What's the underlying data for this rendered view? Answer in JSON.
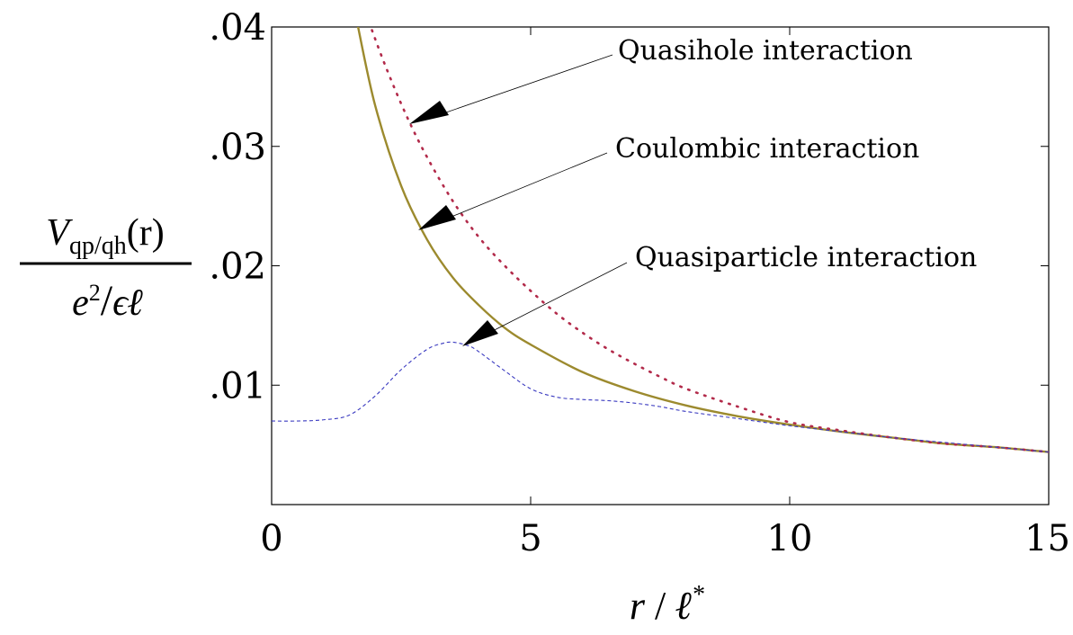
{
  "chart_data": {
    "type": "line",
    "title": "",
    "xlim": [
      0,
      15
    ],
    "ylim": [
      0,
      0.04
    ],
    "x_ticks": [
      0,
      5,
      10,
      15
    ],
    "x_tick_labels": [
      "0",
      "5",
      "10",
      "15"
    ],
    "y_ticks": [
      0.01,
      0.02,
      0.03,
      0.04
    ],
    "y_tick_labels": [
      ".01",
      ".02",
      ".03",
      ".04"
    ],
    "xlabel": {
      "var": "r",
      "sep": " / ",
      "unit": "ℓ",
      "sup": "*"
    },
    "ylabel": {
      "numerator": {
        "var": "V",
        "sub": "qp/qh",
        "arg": "(r)"
      },
      "denominator": {
        "e": "e",
        "pow": "2",
        "sep": "/",
        "eps": "ϵ",
        "ell": "ℓ"
      }
    },
    "grid": false,
    "series": [
      {
        "name": "Coulombic interaction",
        "style": "solid",
        "color": "#9c8a2e",
        "x": [
          1.65,
          2,
          2.5,
          3,
          3.5,
          4,
          4.5,
          5,
          6,
          7,
          8,
          9,
          10,
          11,
          12,
          13,
          14,
          15
        ],
        "y": [
          0.0404,
          0.0334,
          0.0267,
          0.0222,
          0.019,
          0.0167,
          0.0148,
          0.0134,
          0.0111,
          0.0095,
          0.0083,
          0.0074,
          0.0067,
          0.0061,
          0.0056,
          0.0051,
          0.0048,
          0.0044
        ]
      },
      {
        "name": "Quasihole interaction",
        "style": "dotted",
        "color": "#b22a4a",
        "x": [
          1.88,
          2.2,
          2.6,
          3,
          3.5,
          4,
          4.5,
          5,
          5.5,
          6,
          6.5,
          7,
          7.5,
          8,
          9,
          10,
          11,
          12,
          13,
          14,
          15
        ],
        "y": [
          0.0404,
          0.0367,
          0.0326,
          0.0291,
          0.0254,
          0.0224,
          0.02,
          0.0179,
          0.016,
          0.0144,
          0.013,
          0.0118,
          0.0107,
          0.0097,
          0.0082,
          0.0069,
          0.0062,
          0.0056,
          0.0051,
          0.0048,
          0.0044
        ]
      },
      {
        "name": "Quasiparticle interaction",
        "style": "dashed",
        "color": "#3a3ac0",
        "x": [
          0,
          0.5,
          1,
          1.5,
          2,
          2.5,
          3,
          3.3,
          3.5,
          3.8,
          4,
          4.5,
          5,
          5.5,
          6,
          6.5,
          7,
          7.5,
          8,
          9,
          10,
          11,
          12,
          13,
          14,
          15
        ],
        "y": [
          0.007,
          0.007,
          0.0071,
          0.0075,
          0.0091,
          0.0113,
          0.013,
          0.0135,
          0.0136,
          0.0133,
          0.0128,
          0.0112,
          0.0097,
          0.009,
          0.0088,
          0.0087,
          0.0085,
          0.0082,
          0.0078,
          0.0072,
          0.0066,
          0.0061,
          0.0056,
          0.0052,
          0.0048,
          0.0044
        ]
      }
    ],
    "annotations": [
      {
        "key": "quasihole",
        "text": "Quasihole interaction",
        "target": [
          2.65,
          0.0319
        ]
      },
      {
        "key": "coulombic",
        "text": "Coulombic interaction",
        "target": [
          2.85,
          0.0229
        ]
      },
      {
        "key": "quasiparticle",
        "text": "Quasiparticle interaction",
        "target": [
          3.65,
          0.0133
        ]
      }
    ]
  }
}
